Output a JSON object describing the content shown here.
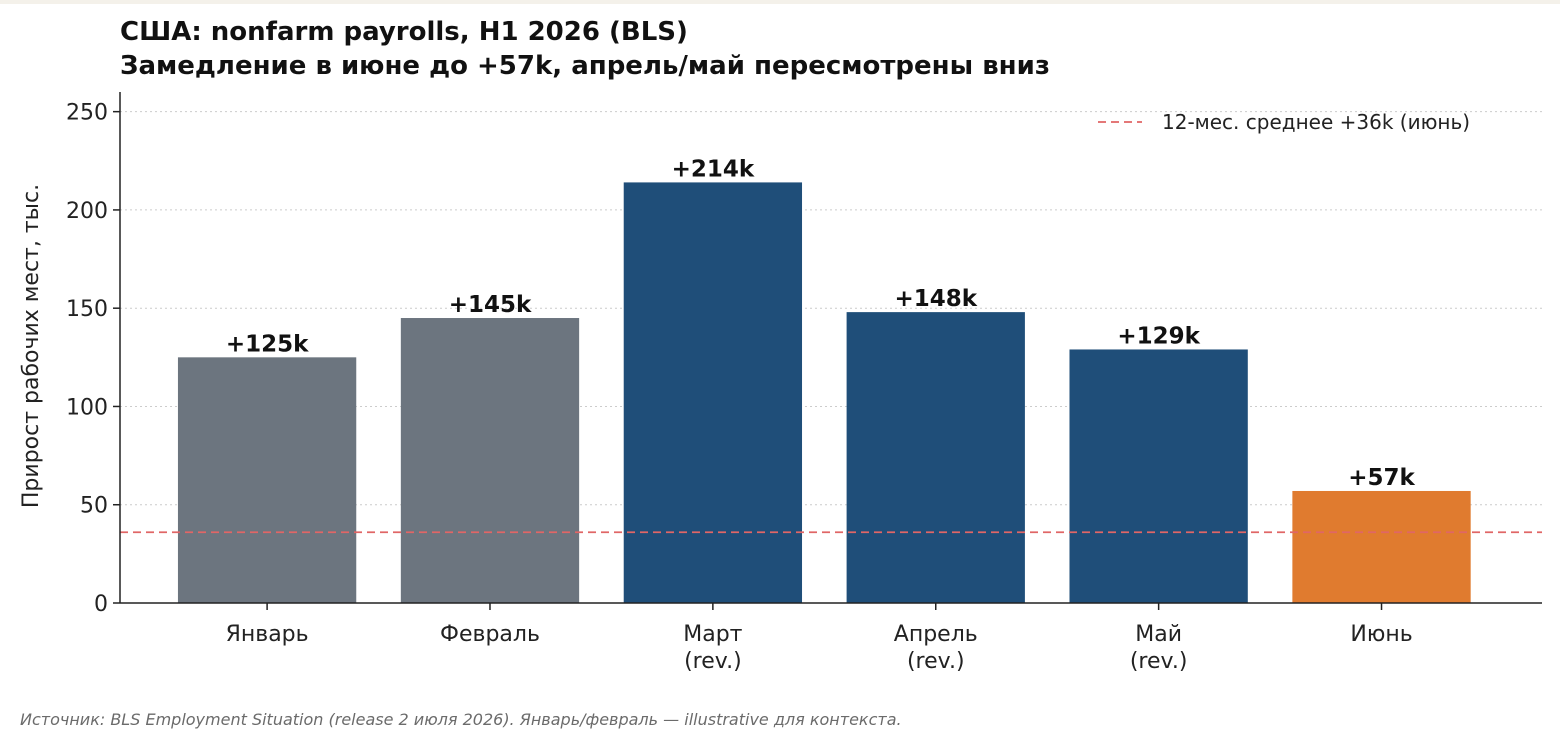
{
  "chart_data": {
    "type": "bar",
    "title": "США: nonfarm payrolls, H1 2026 (BLS)",
    "subtitle": "Замедление в июне до +57k, апрель/май пересмотрены вниз",
    "ylabel": "Прирост рабочих мест, тыс.",
    "xlabel": "",
    "ylim": [
      0,
      260
    ],
    "yticks": [
      0,
      50,
      100,
      150,
      200,
      250
    ],
    "grid": "y-dotted",
    "categories": [
      [
        "Январь"
      ],
      [
        "Февраль"
      ],
      [
        "Март",
        "(rev.)"
      ],
      [
        "Апрель",
        "(rev.)"
      ],
      [
        "Май",
        "(rev.)"
      ],
      [
        "Июнь"
      ]
    ],
    "values": [
      125,
      145,
      214,
      148,
      129,
      57
    ],
    "data_labels": [
      "+125k",
      "+145k",
      "+214k",
      "+148k",
      "+129k",
      "+57k"
    ],
    "bar_colors": [
      "#6c757f",
      "#6c757f",
      "#1f4e79",
      "#1f4e79",
      "#1f4e79",
      "#e07b2f"
    ],
    "reference_line": {
      "value": 36,
      "label": "12-мес. среднее +36k (июнь)",
      "color": "#e06666",
      "style": "dashed"
    },
    "legend_position": "top-right"
  },
  "source_note": "Источник: BLS Employment Situation (release 2 июля 2026). Январь/февраль — illustrative для контекста."
}
